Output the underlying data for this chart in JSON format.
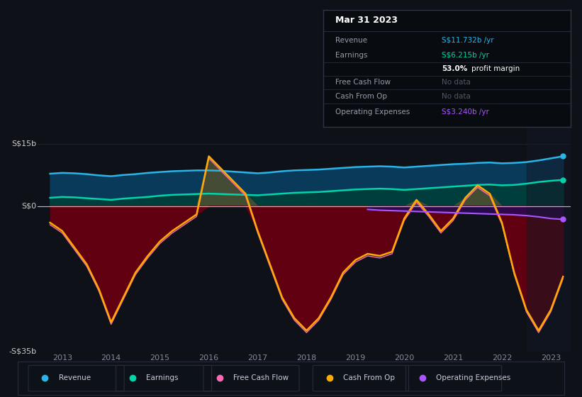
{
  "background_color": "#0e1117",
  "plot_bg_color": "#0e1117",
  "title": "Mar 31 2023",
  "ylabel_top": "S$15b",
  "ylabel_bottom": "-S$35b",
  "y_zero_label": "S$0",
  "x_ticks": [
    2013,
    2014,
    2015,
    2016,
    2017,
    2018,
    2019,
    2020,
    2021,
    2022,
    2023
  ],
  "ylim": [
    -35,
    20
  ],
  "xlim": [
    2012.5,
    2023.4
  ],
  "revenue_color": "#29b5e8",
  "earnings_color": "#00d4aa",
  "free_cash_flow_color": "#ff69b4",
  "cash_from_op_color": "#ffaa00",
  "operating_expenses_color": "#aa55ff",
  "revenue_fill_color": "#0a3a5a",
  "earnings_fill_color": "#004455",
  "cash_from_op_fill_neg_color": "#5a0a0a",
  "cash_from_op_fill_pos_color": "#4a4a20",
  "op_exp_fill_color": "#2a1050",
  "legend_bg": "#131825",
  "gridline_color": "#1e2535",
  "zero_line_color": "#ffffff",
  "highlight_bg": "#131825",
  "years": [
    2012.75,
    2013.0,
    2013.25,
    2013.5,
    2013.75,
    2014.0,
    2014.25,
    2014.5,
    2014.75,
    2015.0,
    2015.25,
    2015.5,
    2015.75,
    2016.0,
    2016.25,
    2016.5,
    2016.75,
    2017.0,
    2017.25,
    2017.5,
    2017.75,
    2018.0,
    2018.25,
    2018.5,
    2018.75,
    2019.0,
    2019.25,
    2019.5,
    2019.75,
    2020.0,
    2020.25,
    2020.5,
    2020.75,
    2021.0,
    2021.25,
    2021.5,
    2021.75,
    2022.0,
    2022.25,
    2022.5,
    2022.75,
    2023.0,
    2023.25
  ],
  "revenue": [
    7.8,
    8.0,
    7.9,
    7.7,
    7.4,
    7.2,
    7.5,
    7.7,
    8.0,
    8.2,
    8.4,
    8.5,
    8.6,
    8.6,
    8.5,
    8.3,
    8.1,
    7.9,
    8.1,
    8.4,
    8.6,
    8.7,
    8.8,
    9.0,
    9.2,
    9.4,
    9.5,
    9.6,
    9.5,
    9.3,
    9.5,
    9.7,
    9.9,
    10.1,
    10.2,
    10.4,
    10.5,
    10.3,
    10.4,
    10.6,
    11.0,
    11.5,
    12.0
  ],
  "earnings": [
    2.0,
    2.2,
    2.1,
    1.9,
    1.7,
    1.5,
    1.8,
    2.0,
    2.2,
    2.5,
    2.7,
    2.8,
    2.9,
    3.0,
    2.9,
    2.8,
    2.7,
    2.6,
    2.8,
    3.0,
    3.2,
    3.3,
    3.4,
    3.6,
    3.8,
    4.0,
    4.1,
    4.2,
    4.1,
    3.9,
    4.1,
    4.3,
    4.5,
    4.7,
    4.9,
    5.1,
    5.2,
    5.0,
    5.1,
    5.4,
    5.8,
    6.1,
    6.3
  ],
  "cash_from_op": [
    -4.0,
    -6.0,
    -10.0,
    -14.0,
    -20.0,
    -28.0,
    -22.0,
    -16.0,
    -12.0,
    -8.5,
    -6.0,
    -4.0,
    -2.0,
    12.0,
    9.0,
    6.0,
    3.0,
    -6.0,
    -14.0,
    -22.0,
    -27.0,
    -30.0,
    -27.0,
    -22.0,
    -16.0,
    -13.0,
    -11.5,
    -12.0,
    -11.0,
    -3.0,
    1.5,
    -2.0,
    -6.0,
    -3.0,
    2.0,
    5.0,
    3.0,
    -4.0,
    -16.0,
    -25.0,
    -30.0,
    -25.0,
    -17.0
  ],
  "free_cash_flow": [
    -4.5,
    -6.5,
    -10.5,
    -14.5,
    -20.5,
    -28.5,
    -22.5,
    -16.5,
    -12.5,
    -9.0,
    -6.5,
    -4.5,
    -2.5,
    11.5,
    8.5,
    5.5,
    2.5,
    -6.5,
    -14.5,
    -22.5,
    -27.5,
    -30.5,
    -27.5,
    -22.5,
    -16.5,
    -13.5,
    -12.0,
    -12.5,
    -11.5,
    -3.5,
    1.0,
    -2.5,
    -6.5,
    -3.5,
    1.5,
    4.5,
    2.5,
    -4.5,
    -16.5,
    -25.5,
    -30.5,
    -25.5,
    -17.5
  ],
  "operating_expenses": [
    null,
    null,
    null,
    null,
    null,
    null,
    null,
    null,
    null,
    null,
    null,
    null,
    null,
    null,
    null,
    null,
    null,
    null,
    null,
    null,
    null,
    null,
    null,
    null,
    null,
    null,
    -0.8,
    -1.0,
    -1.1,
    -1.2,
    -1.3,
    -1.4,
    -1.5,
    -1.6,
    -1.7,
    -1.8,
    -1.9,
    -2.0,
    -2.1,
    -2.3,
    -2.6,
    -3.0,
    -3.2
  ],
  "tooltip_rows": [
    {
      "label": "Revenue",
      "value": "S$11.732b /yr",
      "value_color": "#29b5e8",
      "suffix": ""
    },
    {
      "label": "Earnings",
      "value": "S$6.215b /yr",
      "value_color": "#00d4aa",
      "suffix": ""
    },
    {
      "label": "",
      "value": "53.0%",
      "value_color": "#ffffff",
      "suffix": " profit margin"
    },
    {
      "label": "Free Cash Flow",
      "value": "No data",
      "value_color": "#666666",
      "suffix": ""
    },
    {
      "label": "Cash From Op",
      "value": "No data",
      "value_color": "#666666",
      "suffix": ""
    },
    {
      "label": "Operating Expenses",
      "value": "S$3.240b /yr",
      "value_color": "#aa55ff",
      "suffix": ""
    }
  ],
  "legend_items": [
    {
      "label": "Revenue",
      "color": "#29b5e8"
    },
    {
      "label": "Earnings",
      "color": "#00d4aa"
    },
    {
      "label": "Free Cash Flow",
      "color": "#ff69b4"
    },
    {
      "label": "Cash From Op",
      "color": "#ffaa00"
    },
    {
      "label": "Operating Expenses",
      "color": "#aa55ff"
    }
  ]
}
